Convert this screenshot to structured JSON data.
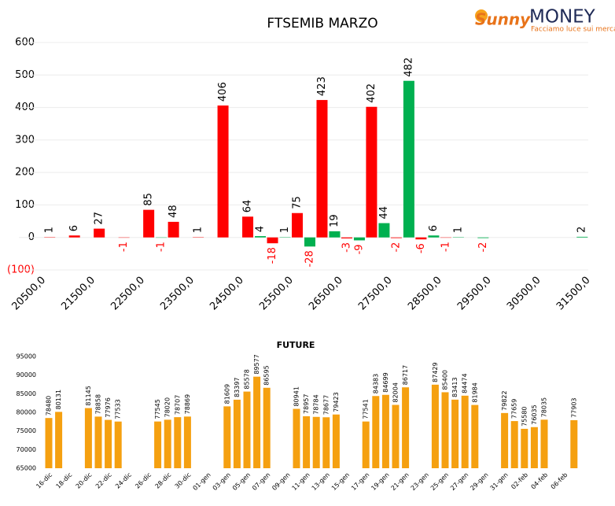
{
  "logo": {
    "brand": "Sunny",
    "name": "MONEY",
    "tagline": "Facciamo luce sui mercati"
  },
  "chart_data": [
    {
      "type": "bar",
      "title": "FTSEMIB MARZO",
      "categories": [
        "20500,0",
        null,
        "21500,0",
        null,
        "22500,0",
        null,
        "23500,0",
        null,
        "24500,0",
        null,
        "25500,0",
        null,
        "26500,0",
        null,
        "27500,0",
        null,
        "28500,0",
        null,
        "29500,0",
        null,
        "30500,0",
        null,
        "31500,0"
      ],
      "series": [
        {
          "color": "#ff0000",
          "values": [
            null,
            1,
            6,
            27,
            -1,
            85,
            48,
            1,
            406,
            64,
            -18,
            75,
            423,
            -3,
            402,
            -2,
            -6,
            -1,
            null,
            null,
            null,
            null,
            null
          ]
        },
        {
          "color": "#00b050",
          "values": [
            null,
            null,
            null,
            null,
            null,
            -1,
            null,
            null,
            null,
            4,
            1,
            -28,
            19,
            -9,
            44,
            482,
            6,
            1,
            -2,
            null,
            null,
            null,
            2
          ]
        }
      ],
      "negative_color": "#ff0000",
      "ylim": [
        -100,
        600
      ],
      "yticks": [
        {
          "value": -100,
          "label": "(100)"
        },
        0,
        100,
        200,
        300,
        400,
        500,
        600
      ],
      "grid": true
    },
    {
      "type": "bar",
      "title": "FUTURE",
      "categories": [
        "16-dic",
        null,
        "18-dic",
        null,
        "20-dic",
        null,
        "22-dic",
        null,
        "24-dic",
        null,
        "26-dic",
        null,
        "28-dic",
        null,
        "30-dic",
        null,
        "01-gen",
        null,
        "03-gen",
        null,
        "05-gen",
        null,
        "07-gen",
        null,
        "09-gen",
        null,
        "11-gen",
        null,
        "13-gen",
        null,
        "15-gen",
        null,
        "17-gen",
        null,
        "19-gen",
        null,
        "21-gen",
        null,
        "23-gen",
        null,
        "25-gen",
        null,
        "27-gen",
        null,
        "29-gen",
        null,
        "31-gen",
        null,
        "02-feb",
        null,
        "04-feb",
        null,
        "06-feb",
        null
      ],
      "values": [
        78480,
        80131,
        null,
        null,
        81145,
        78858,
        77976,
        77533,
        null,
        null,
        null,
        77545,
        78020,
        78707,
        78869,
        null,
        null,
        null,
        81609,
        83397,
        85578,
        89577,
        86595,
        null,
        null,
        80941,
        78957,
        78784,
        78677,
        79423,
        null,
        null,
        77541,
        84383,
        84699,
        82004,
        86717,
        null,
        null,
        87429,
        85400,
        83413,
        84474,
        81984,
        null,
        null,
        79822,
        77659,
        75580,
        76035,
        78035,
        null,
        null,
        77903
      ],
      "color": "#f5a010",
      "ylim": [
        65000,
        95000
      ],
      "yticks": [
        65000,
        70000,
        75000,
        80000,
        85000,
        90000,
        95000
      ],
      "grid": false
    }
  ]
}
